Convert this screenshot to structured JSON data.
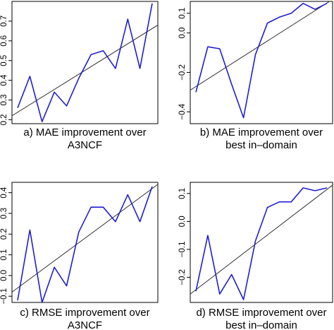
{
  "chart_data": [
    {
      "type": "line",
      "caption_lines": [
        "a) MAE improvement over",
        "A3NCF"
      ],
      "ylim": [
        0.18,
        0.8
      ],
      "yticks": [
        0.2,
        0.3,
        0.4,
        0.5,
        0.6,
        0.7
      ],
      "ytick_labels": [
        "0.2",
        "0.3",
        "0.4",
        "0.5",
        "0.6",
        "0.7"
      ],
      "series": [
        {
          "values": [
            0.26,
            0.42,
            0.19,
            0.34,
            0.27,
            0.41,
            0.53,
            0.55,
            0.46,
            0.71,
            0.46,
            0.79
          ],
          "color": "#1f1fd0"
        }
      ],
      "trend_line": [
        0.22,
        0.68
      ],
      "grid": false
    },
    {
      "type": "line",
      "caption_lines": [
        "b) MAE improvement over",
        "best in–domain"
      ],
      "ylim": [
        -0.46,
        0.16
      ],
      "yticks": [
        -0.4,
        -0.2,
        0.0,
        0.1
      ],
      "ytick_labels": [
        "−0.4",
        "−0.2",
        "0.0",
        "0.1"
      ],
      "series": [
        {
          "values": [
            -0.3,
            -0.07,
            -0.08,
            -0.26,
            -0.43,
            -0.11,
            0.05,
            0.08,
            0.1,
            0.15,
            0.12,
            0.15
          ],
          "color": "#1f1fd0"
        }
      ],
      "trend_line": [
        -0.29,
        0.17
      ],
      "grid": false
    },
    {
      "type": "line",
      "caption_lines": [
        "c) RMSE improvement over",
        "A3NCF"
      ],
      "ylim": [
        -0.13,
        0.45
      ],
      "yticks": [
        -0.1,
        0.0,
        0.1,
        0.2,
        0.3,
        0.4
      ],
      "ytick_labels": [
        "−0.1",
        "0.0",
        "0.1",
        "0.2",
        "0.3",
        "0.4"
      ],
      "series": [
        {
          "values": [
            -0.12,
            0.22,
            -0.13,
            0.04,
            -0.05,
            0.21,
            0.33,
            0.33,
            0.26,
            0.39,
            0.26,
            0.43
          ],
          "color": "#1f1fd0"
        }
      ],
      "trend_line": [
        -0.08,
        0.44
      ],
      "grid": false
    },
    {
      "type": "line",
      "caption_lines": [
        "d) RMSE improvement over",
        "best in–domain"
      ],
      "ylim": [
        -0.29,
        0.14
      ],
      "yticks": [
        -0.2,
        -0.1,
        0.0,
        0.1
      ],
      "ytick_labels": [
        "−0.2",
        "−0.1",
        "0.0",
        "0.1"
      ],
      "series": [
        {
          "values": [
            -0.25,
            -0.05,
            -0.26,
            -0.19,
            -0.28,
            -0.07,
            0.05,
            0.07,
            0.07,
            0.12,
            0.11,
            0.12
          ],
          "color": "#1f1fd0"
        }
      ],
      "trend_line": [
        -0.26,
        0.13
      ],
      "grid": false
    }
  ]
}
